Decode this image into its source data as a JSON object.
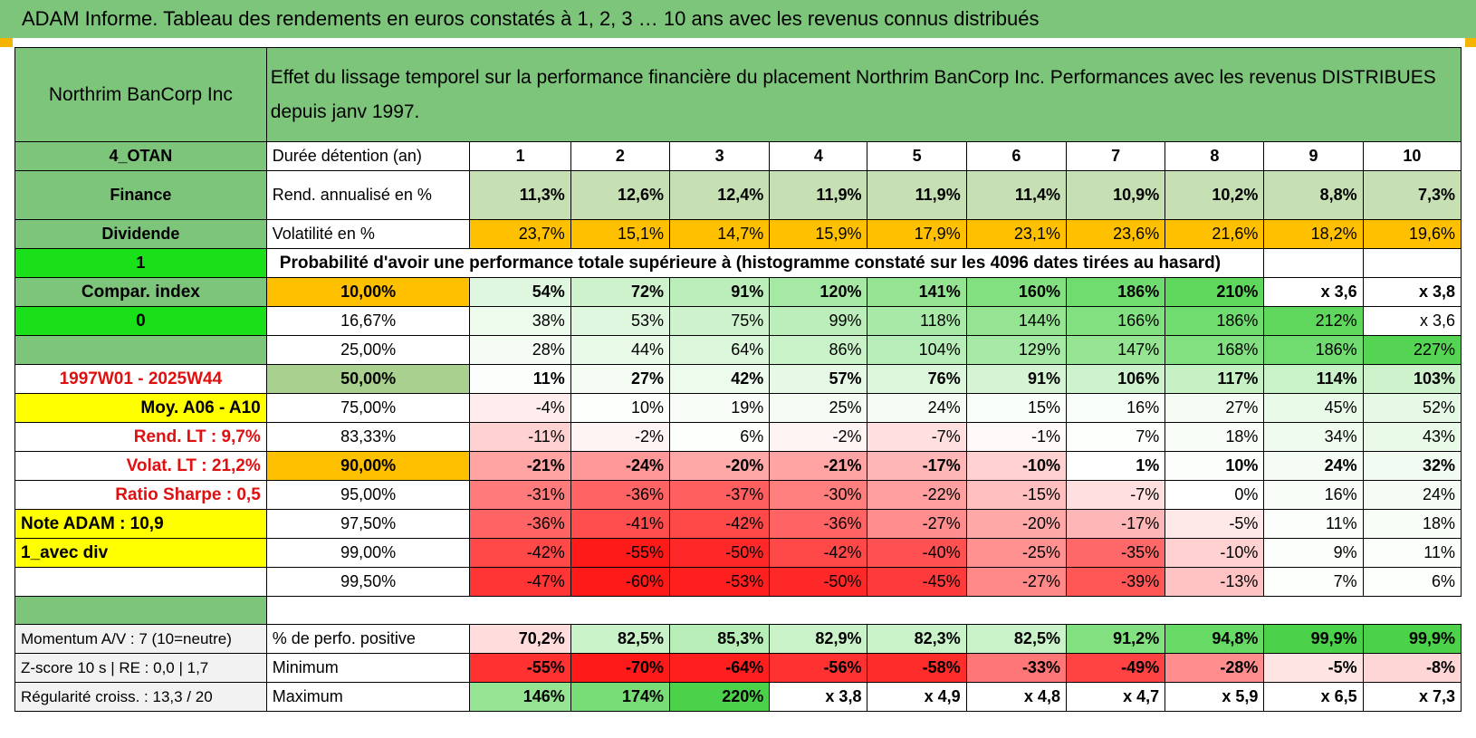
{
  "title": "ADAM Informe. Tableau des rendements en euros constatés à 1, 2, 3 … 10 ans avec les revenus connus distribués",
  "header": {
    "company": "Northrim BanCorp Inc",
    "description": "Effet du lissage temporel sur la performance financière du placement Northrim BanCorp Inc. Performances avec les revenus DISTRIBUES depuis janv 1997."
  },
  "left_labels": {
    "code": "4_OTAN",
    "sector": "Finance",
    "type": "Dividende",
    "flag1": "1",
    "compar": "Compar. index",
    "flag0": "0",
    "period": "1997W01 - 2025W44",
    "moy": "Moy. A06 - A10",
    "rend_lt": "Rend. LT :   9,7%",
    "volat_lt": "Volat. LT :   21,2%",
    "sharpe": "Ratio Sharpe :   0,5",
    "note": "Note ADAM : 10,9",
    "variant": "1_avec div"
  },
  "row_labels": {
    "duration": "Durée détention (an)",
    "rend": "Rend. annualisé en %",
    "vol": "Volatilité en %",
    "proba": "Probabilité d'avoir une performance totale supérieure à (histogramme constaté sur les 4096 dates tirées au hasard)"
  },
  "years": [
    "1",
    "2",
    "3",
    "4",
    "5",
    "6",
    "7",
    "8",
    "9",
    "10"
  ],
  "rend": [
    "11,3%",
    "12,6%",
    "12,4%",
    "11,9%",
    "11,9%",
    "11,4%",
    "10,9%",
    "10,2%",
    "8,8%",
    "7,3%"
  ],
  "vol": [
    "23,7%",
    "15,1%",
    "14,7%",
    "15,9%",
    "17,9%",
    "23,1%",
    "23,6%",
    "21,6%",
    "18,2%",
    "19,6%"
  ],
  "colors": {
    "header_green": "#7cc57a",
    "bright_green": "#19e019",
    "orange": "#ffc000",
    "yellow": "#ffff00",
    "red_text": "#e01010",
    "good": "#63be7b",
    "bad": "#f8696b"
  },
  "prob_rows": [
    {
      "pct": "10,00%",
      "style": "orange-b",
      "values": [
        "54%",
        "72%",
        "91%",
        "120%",
        "141%",
        "160%",
        "186%",
        "210%",
        "x 3,6",
        "x 3,8"
      ],
      "shade": [
        0.18,
        0.28,
        0.38,
        0.5,
        0.6,
        0.7,
        0.8,
        0.9,
        null,
        null
      ],
      "bold": true
    },
    {
      "pct": "16,67%",
      "style": "",
      "values": [
        "38%",
        "53%",
        "75%",
        "99%",
        "118%",
        "144%",
        "166%",
        "186%",
        "212%",
        "x 3,6"
      ],
      "shade": [
        0.1,
        0.18,
        0.28,
        0.38,
        0.48,
        0.6,
        0.7,
        0.8,
        0.9,
        null
      ],
      "bold": false
    },
    {
      "pct": "25,00%",
      "style": "",
      "values": [
        "28%",
        "44%",
        "64%",
        "86%",
        "104%",
        "129%",
        "147%",
        "168%",
        "186%",
        "227%"
      ],
      "shade": [
        0.06,
        0.12,
        0.2,
        0.3,
        0.4,
        0.5,
        0.6,
        0.7,
        0.8,
        0.95
      ],
      "bold": false
    },
    {
      "pct": "50,00%",
      "style": "median",
      "values": [
        "11%",
        "27%",
        "42%",
        "57%",
        "76%",
        "91%",
        "106%",
        "117%",
        "114%",
        "103%"
      ],
      "shade": [
        0.02,
        0.06,
        0.1,
        0.14,
        0.2,
        0.24,
        0.28,
        0.32,
        0.3,
        0.28
      ],
      "bold": true
    },
    {
      "pct": "75,00%",
      "style": "",
      "values": [
        "-4%",
        "10%",
        "19%",
        "25%",
        "24%",
        "15%",
        "16%",
        "27%",
        "45%",
        "52%"
      ],
      "shade": [
        -0.08,
        0.01,
        0.04,
        0.06,
        0.06,
        0.03,
        0.03,
        0.06,
        0.12,
        0.14
      ],
      "bold": false
    },
    {
      "pct": "83,33%",
      "style": "",
      "values": [
        "-11%",
        "-2%",
        "6%",
        "-2%",
        "-7%",
        "-1%",
        "7%",
        "18%",
        "34%",
        "43%"
      ],
      "shade": [
        -0.2,
        -0.05,
        0.01,
        -0.05,
        -0.14,
        -0.03,
        0.01,
        0.04,
        0.09,
        0.12
      ],
      "bold": false
    },
    {
      "pct": "90,00%",
      "style": "orange-b",
      "values": [
        "-21%",
        "-24%",
        "-20%",
        "-21%",
        "-17%",
        "-10%",
        "1%",
        "10%",
        "24%",
        "32%"
      ],
      "shade": [
        -0.4,
        -0.45,
        -0.38,
        -0.4,
        -0.32,
        -0.2,
        0.0,
        0.02,
        0.06,
        0.08
      ],
      "bold": true
    },
    {
      "pct": "95,00%",
      "style": "",
      "values": [
        "-31%",
        "-36%",
        "-37%",
        "-30%",
        "-22%",
        "-15%",
        "-7%",
        "0%",
        "16%",
        "24%"
      ],
      "shade": [
        -0.58,
        -0.68,
        -0.7,
        -0.56,
        -0.42,
        -0.28,
        -0.14,
        0.0,
        0.04,
        0.06
      ],
      "bold": false
    },
    {
      "pct": "97,50%",
      "style": "",
      "values": [
        "-36%",
        "-41%",
        "-42%",
        "-36%",
        "-27%",
        "-20%",
        "-17%",
        "-5%",
        "11%",
        "18%"
      ],
      "shade": [
        -0.68,
        -0.78,
        -0.8,
        -0.68,
        -0.5,
        -0.38,
        -0.32,
        -0.1,
        0.02,
        0.04
      ],
      "bold": false
    },
    {
      "pct": "99,00%",
      "style": "",
      "values": [
        "-42%",
        "-55%",
        "-50%",
        "-42%",
        "-40%",
        "-25%",
        "-35%",
        "-10%",
        "9%",
        "11%"
      ],
      "shade": [
        -0.8,
        -1.0,
        -0.94,
        -0.8,
        -0.76,
        -0.48,
        -0.66,
        -0.2,
        0.02,
        0.02
      ],
      "bold": false
    },
    {
      "pct": "99,50%",
      "style": "",
      "values": [
        "-47%",
        "-60%",
        "-53%",
        "-50%",
        "-45%",
        "-27%",
        "-39%",
        "-13%",
        "7%",
        "6%"
      ],
      "shade": [
        -0.88,
        -1.0,
        -0.98,
        -0.94,
        -0.86,
        -0.52,
        -0.74,
        -0.26,
        0.01,
        0.01
      ],
      "bold": false
    }
  ],
  "bottom": {
    "momentum": "Momentum A/V : 7 (10=neutre)",
    "zscore": "Z-score 10 s | RE : 0,0 | 1,7",
    "regularite": "Régularité croiss. : 13,3 / 20",
    "pos_label": "% de perfo. positive",
    "min_label": "Minimum",
    "max_label": "Maximum",
    "pos": [
      "70,2%",
      "82,5%",
      "85,3%",
      "82,9%",
      "82,3%",
      "82,5%",
      "91,2%",
      "94,8%",
      "99,9%",
      "99,9%"
    ],
    "pos_shade": [
      -0.15,
      0.3,
      0.4,
      0.3,
      0.3,
      0.3,
      0.7,
      0.85,
      1.0,
      1.0
    ],
    "min": [
      "-55%",
      "-70%",
      "-64%",
      "-56%",
      "-58%",
      "-33%",
      "-49%",
      "-28%",
      "-5%",
      "-8%"
    ],
    "min_shade": [
      -0.9,
      -1.0,
      -0.98,
      -0.9,
      -0.92,
      -0.6,
      -0.82,
      -0.5,
      -0.12,
      -0.18
    ],
    "max": [
      "146%",
      "174%",
      "220%",
      "x 3,8",
      "x 4,9",
      "x 4,8",
      "x 4,7",
      "x 5,9",
      "x 6,5",
      "x 7,3"
    ],
    "max_shade": [
      0.6,
      0.75,
      1.0,
      null,
      null,
      null,
      null,
      null,
      null,
      null
    ]
  }
}
